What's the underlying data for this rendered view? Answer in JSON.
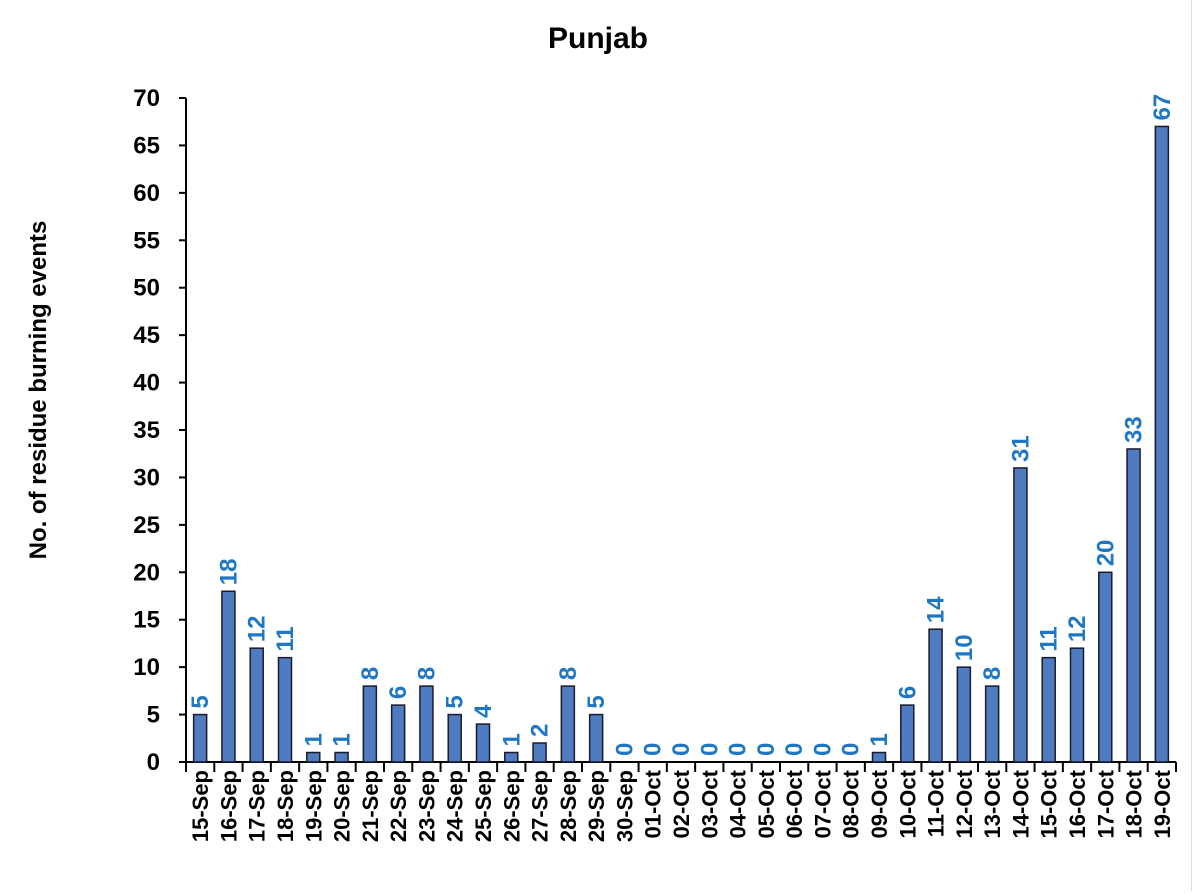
{
  "chart_data": {
    "type": "bar",
    "title": "Punjab",
    "xlabel": "",
    "ylabel": "No. of residue burning events",
    "ylim": [
      0,
      70
    ],
    "ytick_step": 5,
    "grid": false,
    "categories": [
      "15-Sep",
      "16-Sep",
      "17-Sep",
      "18-Sep",
      "19-Sep",
      "20-Sep",
      "21-Sep",
      "22-Sep",
      "23-Sep",
      "24-Sep",
      "25-Sep",
      "26-Sep",
      "27-Sep",
      "28-Sep",
      "29-Sep",
      "30-Sep",
      "01-Oct",
      "02-Oct",
      "03-Oct",
      "04-Oct",
      "05-Oct",
      "06-Oct",
      "07-Oct",
      "08-Oct",
      "09-Oct",
      "10-Oct",
      "11-Oct",
      "12-Oct",
      "13-Oct",
      "14-Oct",
      "15-Oct",
      "16-Oct",
      "17-Oct",
      "18-Oct",
      "19-Oct"
    ],
    "values": [
      5,
      18,
      12,
      11,
      1,
      1,
      8,
      6,
      8,
      5,
      4,
      1,
      2,
      8,
      5,
      0,
      0,
      0,
      0,
      0,
      0,
      0,
      0,
      0,
      1,
      6,
      14,
      10,
      8,
      31,
      11,
      12,
      20,
      33,
      67
    ],
    "colors": {
      "bar": "#4f7cc0",
      "bar_edge": "#1a1a2e",
      "label": "#1f77c4"
    }
  }
}
